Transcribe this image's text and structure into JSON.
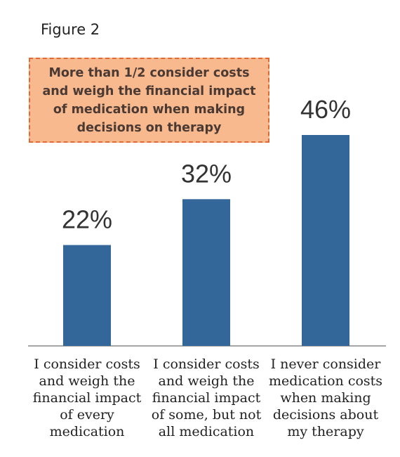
{
  "figure_label": "Figure 2",
  "callout_text": "More than 1/2 consider costs and weigh the financial impact of medication when making decisions on therapy",
  "colors": {
    "bar": "#336699",
    "callout_fill": "#f9b98e",
    "callout_border": "#e06a33",
    "axis": "#888888"
  },
  "chart_data": {
    "type": "bar",
    "categories": [
      "I consider costs and weigh the financial impact of every medication",
      "I consider costs and weigh the financial impact of some, but not all medication",
      "I never consider medication costs when making decisions about my therapy"
    ],
    "values": [
      22,
      32,
      46
    ],
    "value_labels": [
      "22%",
      "32%",
      "46%"
    ],
    "title": "",
    "xlabel": "",
    "ylabel": "",
    "ylim": [
      0,
      46
    ],
    "grid": false,
    "legend": "none"
  }
}
